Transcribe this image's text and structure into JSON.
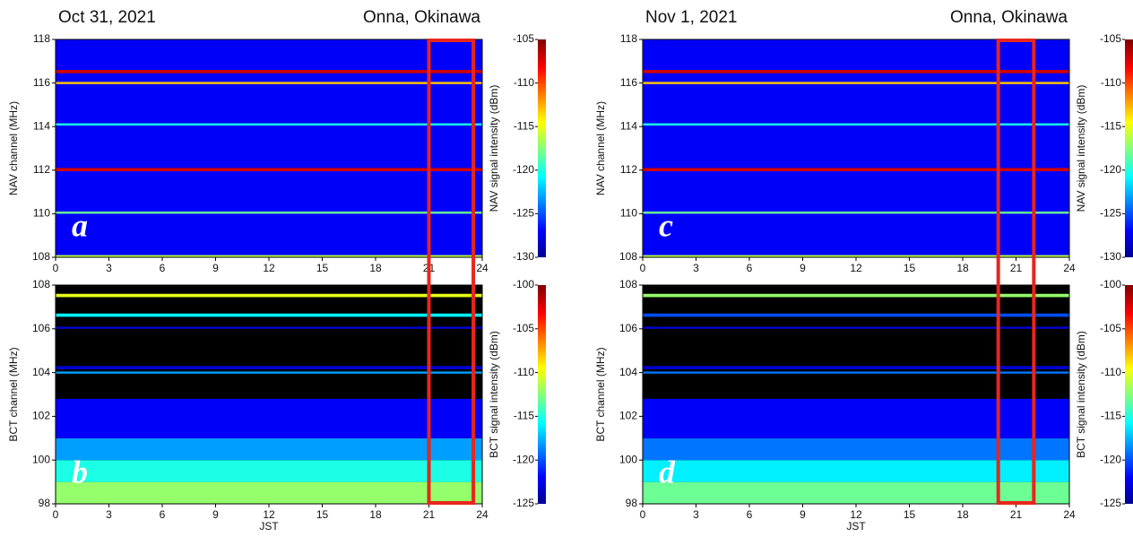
{
  "chart_data": [
    {
      "type": "heatmap",
      "title": "Oct 31, 2021",
      "location": "Onna, Okinawa",
      "panel_label": "a",
      "ylabel": "NAV channel (MHz)",
      "xlim": [
        0,
        24
      ],
      "xticks": [
        0,
        3,
        6,
        9,
        12,
        15,
        18,
        21,
        24
      ],
      "ylim": [
        108,
        118
      ],
      "yticks": [
        108,
        110,
        112,
        114,
        116,
        118
      ],
      "base": -127,
      "bands": [
        {
          "y0": 116.45,
          "y1": 116.6,
          "value": -107
        },
        {
          "y0": 115.95,
          "y1": 116.05,
          "value": -113
        },
        {
          "y0": 114.05,
          "y1": 114.15,
          "value": -120
        },
        {
          "y0": 111.95,
          "y1": 112.1,
          "value": -107
        },
        {
          "y0": 110.0,
          "y1": 110.1,
          "value": -118
        },
        {
          "y0": 108.0,
          "y1": 108.1,
          "value": -116
        }
      ],
      "colorbar": {
        "label": "NAV signal intensity (dBm)",
        "lim": [
          -130,
          -105
        ],
        "ticks": [
          -105,
          -110,
          -115,
          -120,
          -125,
          -130
        ]
      },
      "highlight_xlim": [
        21,
        23.5
      ]
    },
    {
      "type": "heatmap",
      "panel_label": "b",
      "ylabel": "BCT channel (MHz)",
      "xlabel": "JST",
      "xlim": [
        0,
        24
      ],
      "xticks": [
        0,
        3,
        6,
        9,
        12,
        15,
        18,
        21,
        24
      ],
      "ylim": [
        98,
        108
      ],
      "yticks": [
        98,
        100,
        102,
        104,
        106,
        108
      ],
      "bands": [
        {
          "y0": 98,
          "y1": 99,
          "value": -112
        },
        {
          "y0": 99,
          "y1": 100,
          "value": -115
        },
        {
          "y0": 100,
          "y1": 101,
          "value": -118
        },
        {
          "y0": 101,
          "y1": 102.8,
          "value": -122
        },
        {
          "y0": 107.45,
          "y1": 107.6,
          "value": -110
        },
        {
          "y0": 106.55,
          "y1": 106.7,
          "value": -116
        },
        {
          "y0": 106.0,
          "y1": 106.1,
          "value": -123
        },
        {
          "y0": 104.15,
          "y1": 104.3,
          "value": -123
        },
        {
          "y0": 103.95,
          "y1": 104.05,
          "value": -118
        }
      ],
      "colorbar": {
        "label": "BCT signal intensity (dBm)",
        "lim": [
          -125,
          -100
        ],
        "ticks": [
          -100,
          -105,
          -110,
          -115,
          -120,
          -125
        ]
      }
    },
    {
      "type": "heatmap",
      "title": "Nov 1, 2021",
      "location": "Onna, Okinawa",
      "panel_label": "c",
      "ylabel": "NAV channel (MHz)",
      "xlim": [
        0,
        24
      ],
      "xticks": [
        0,
        3,
        6,
        9,
        12,
        15,
        18,
        21,
        24
      ],
      "ylim": [
        108,
        118
      ],
      "yticks": [
        108,
        110,
        112,
        114,
        116,
        118
      ],
      "base": -127,
      "bands": [
        {
          "y0": 116.45,
          "y1": 116.6,
          "value": -107
        },
        {
          "y0": 115.95,
          "y1": 116.05,
          "value": -113
        },
        {
          "y0": 114.05,
          "y1": 114.15,
          "value": -120
        },
        {
          "y0": 111.95,
          "y1": 112.1,
          "value": -107
        },
        {
          "y0": 110.0,
          "y1": 110.1,
          "value": -118
        },
        {
          "y0": 108.0,
          "y1": 108.1,
          "value": -116
        }
      ],
      "colorbar": {
        "label": "NAV signal intensity (dBm)",
        "lim": [
          -130,
          -105
        ],
        "ticks": [
          -105,
          -110,
          -115,
          -120,
          -125,
          -130
        ]
      },
      "highlight_xlim": [
        20,
        22
      ]
    },
    {
      "type": "heatmap",
      "panel_label": "d",
      "ylabel": "BCT channel (MHz)",
      "xlabel": "JST",
      "xlim": [
        0,
        24
      ],
      "xticks": [
        0,
        3,
        6,
        9,
        12,
        15,
        18,
        21,
        24
      ],
      "ylim": [
        98,
        108
      ],
      "yticks": [
        98,
        100,
        102,
        104,
        106,
        108
      ],
      "bands": [
        {
          "y0": 98,
          "y1": 99,
          "value": -113
        },
        {
          "y0": 99,
          "y1": 100,
          "value": -116
        },
        {
          "y0": 100,
          "y1": 101,
          "value": -119
        },
        {
          "y0": 101,
          "y1": 102.8,
          "value": -122
        },
        {
          "y0": 107.45,
          "y1": 107.6,
          "value": -112
        },
        {
          "y0": 106.55,
          "y1": 106.7,
          "value": -120
        },
        {
          "y0": 106.0,
          "y1": 106.1,
          "value": -123
        },
        {
          "y0": 104.15,
          "y1": 104.3,
          "value": -123
        },
        {
          "y0": 103.95,
          "y1": 104.05,
          "value": -119
        }
      ],
      "colorbar": {
        "label": "BCT signal intensity (dBm)",
        "lim": [
          -125,
          -100
        ],
        "ticks": [
          -100,
          -105,
          -110,
          -115,
          -120,
          -125
        ]
      }
    }
  ]
}
